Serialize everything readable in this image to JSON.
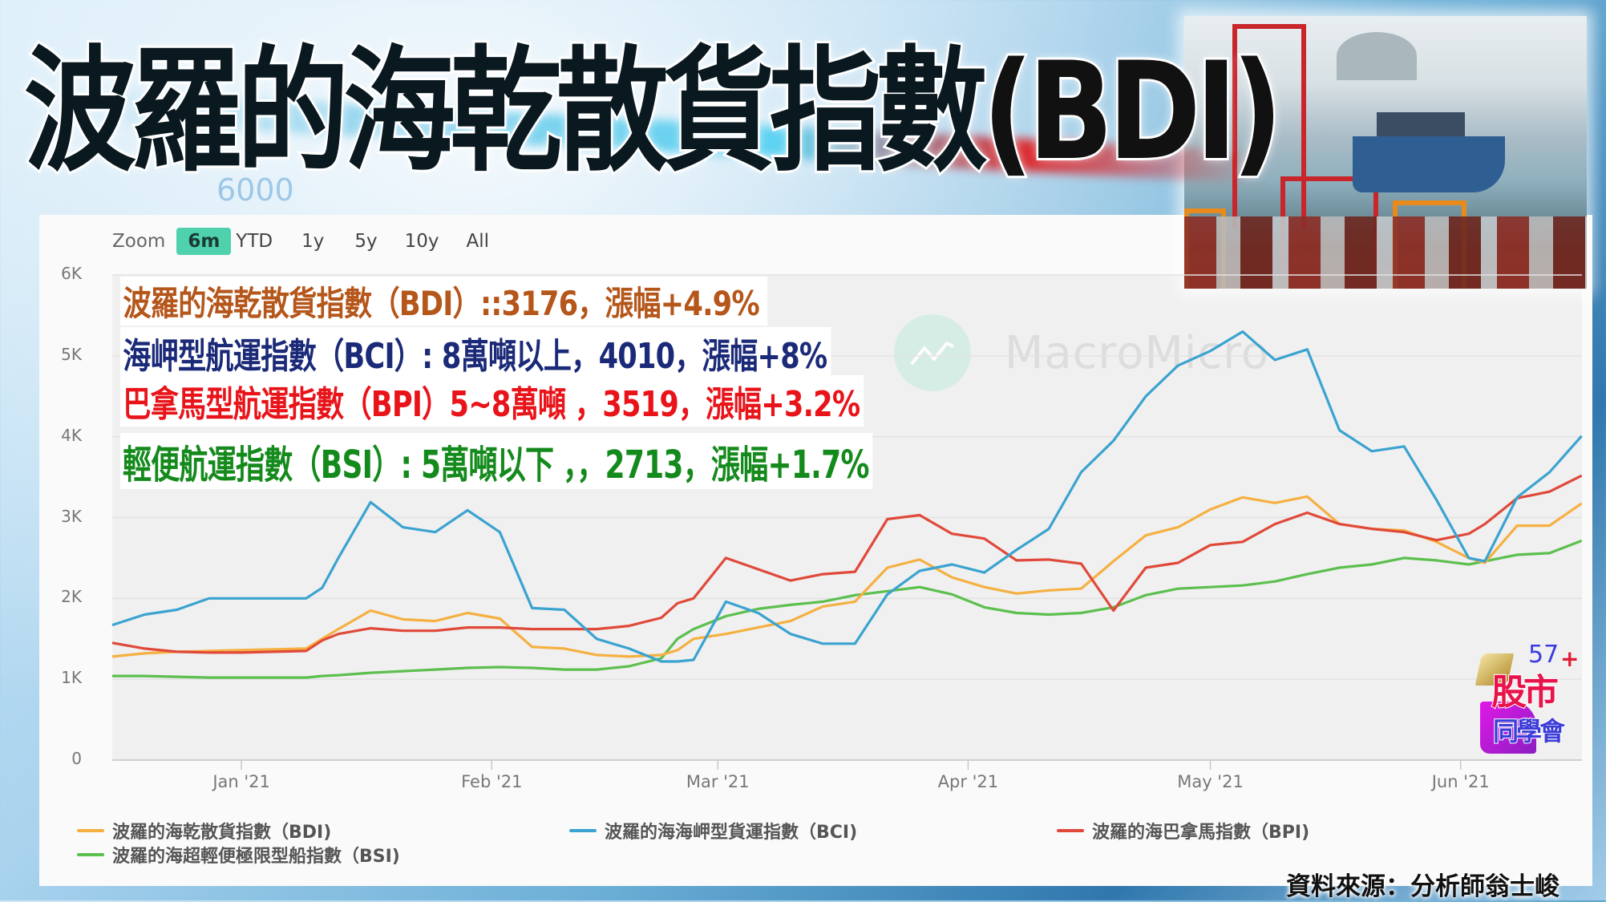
{
  "banner": {
    "title_cn": "波羅的海乾散貨指數",
    "title_paren_open": "(",
    "title_abbr": "BDI",
    "title_paren_close": ")",
    "background_ghost_number": "6000"
  },
  "chart_toolbar": {
    "zoom_label": "Zoom",
    "buttons": [
      {
        "label": "6m",
        "active": true
      },
      {
        "label": "YTD",
        "active": false
      },
      {
        "label": "1y",
        "active": false
      },
      {
        "label": "5y",
        "active": false
      },
      {
        "label": "10y",
        "active": false
      },
      {
        "label": "All",
        "active": false
      }
    ]
  },
  "watermark": {
    "text": "MacroMicro",
    "icon": "chart-line-icon"
  },
  "annotations": [
    {
      "text": "波羅的海乾散貨指數（BDI）::3176，漲幅+4.9%",
      "color": "#b5561a"
    },
    {
      "text": "海岬型航運指數（BCI）: 8萬噸以上，4010，漲幅+8%",
      "color": "#1b2a78"
    },
    {
      "text": "巴拿馬型航運指數（BPI）5~8萬噸 ，3519，漲幅+3.2%",
      "color": "#e8141a"
    },
    {
      "text": "輕便航運指數（BSI）: 5萬噸以下 ，，2713，漲幅+1.7%",
      "color": "#148a1c"
    }
  ],
  "legend": [
    {
      "label": "波羅的海乾散貨指數（BDI)",
      "color": "#f5b041"
    },
    {
      "label": "波羅的海海岬型貨運指數（BCI)",
      "color": "#3aa3d0"
    },
    {
      "label": "波羅的海巴拿馬指數（BPI)",
      "color": "#e0493a"
    },
    {
      "label": "波羅的海超輕便極限型船指數（BSI)",
      "color": "#5cbf4e"
    }
  ],
  "source": "資料來源：分析師翁士峻",
  "logo": {
    "number": "57",
    "plus": "+",
    "line1": "股市",
    "line2": "同學會"
  },
  "chart_data": {
    "type": "line",
    "title": "波羅的海乾散貨指數(BDI)",
    "xlabel": "",
    "ylabel": "",
    "ylim": [
      0,
      6000
    ],
    "yticks": [
      "0",
      "1K",
      "2K",
      "3K",
      "4K",
      "5K",
      "6K"
    ],
    "ytick_values": [
      0,
      1000,
      2000,
      3000,
      4000,
      5000,
      6000
    ],
    "xticks": [
      "Jan '21",
      "Feb '21",
      "Mar '21",
      "Apr '21",
      "May '21",
      "Jun '21"
    ],
    "xtick_days": [
      16,
      47,
      75,
      106,
      136,
      167
    ],
    "x_start": "2020-12-16",
    "x_end": "2021-06-16",
    "grid": true,
    "legend_position": "bottom",
    "x_days": [
      0,
      4,
      8,
      12,
      16,
      20,
      24,
      26,
      28,
      32,
      36,
      40,
      44,
      48,
      52,
      56,
      60,
      64,
      68,
      70,
      72,
      76,
      80,
      84,
      88,
      92,
      96,
      100,
      104,
      108,
      112,
      116,
      120,
      124,
      128,
      132,
      136,
      140,
      144,
      148,
      152,
      156,
      160,
      164,
      168,
      170,
      174,
      178,
      182
    ],
    "series": [
      {
        "name": "波羅的海乾散貨指數（BDI)",
        "color": "#f5b041",
        "values": [
          1280,
          1320,
          1340,
          1350,
          1360,
          1370,
          1380,
          1500,
          1620,
          1850,
          1740,
          1720,
          1820,
          1750,
          1400,
          1380,
          1300,
          1280,
          1300,
          1360,
          1500,
          1560,
          1640,
          1720,
          1900,
          1960,
          2380,
          2480,
          2260,
          2140,
          2060,
          2100,
          2120,
          2460,
          2780,
          2880,
          3100,
          3250,
          3180,
          3260,
          2920,
          2860,
          2840,
          2700,
          2500,
          2440,
          2900,
          2900,
          3176
        ]
      },
      {
        "name": "波羅的海海岬型貨運指數（BCI)",
        "color": "#3aa3d0",
        "values": [
          1670,
          1800,
          1860,
          2000,
          2000,
          2000,
          2000,
          2130,
          2500,
          3190,
          2880,
          2820,
          3090,
          2820,
          1880,
          1860,
          1500,
          1380,
          1220,
          1220,
          1240,
          1960,
          1820,
          1560,
          1440,
          1440,
          2050,
          2340,
          2420,
          2320,
          2600,
          2860,
          3560,
          3950,
          4500,
          4880,
          5060,
          5300,
          4950,
          5080,
          4080,
          3820,
          3880,
          3220,
          2500,
          2460,
          3250,
          3560,
          4010
        ]
      },
      {
        "name": "波羅的海巴拿馬指數（BPI)",
        "color": "#e0493a",
        "values": [
          1450,
          1380,
          1340,
          1330,
          1330,
          1340,
          1350,
          1480,
          1560,
          1630,
          1600,
          1600,
          1640,
          1640,
          1620,
          1620,
          1620,
          1660,
          1760,
          1940,
          2000,
          2500,
          2360,
          2220,
          2300,
          2330,
          2980,
          3030,
          2800,
          2740,
          2470,
          2480,
          2430,
          1850,
          2380,
          2440,
          2660,
          2700,
          2920,
          3060,
          2920,
          2860,
          2820,
          2720,
          2800,
          2920,
          3240,
          3320,
          3519
        ]
      },
      {
        "name": "波羅的海超輕便極限型船指數（BSI)",
        "color": "#5cbf4e",
        "values": [
          1040,
          1040,
          1030,
          1020,
          1020,
          1020,
          1020,
          1040,
          1050,
          1080,
          1100,
          1120,
          1140,
          1150,
          1140,
          1120,
          1120,
          1160,
          1260,
          1500,
          1620,
          1780,
          1870,
          1920,
          1960,
          2040,
          2090,
          2140,
          2050,
          1890,
          1820,
          1800,
          1820,
          1890,
          2040,
          2120,
          2140,
          2160,
          2210,
          2300,
          2380,
          2420,
          2500,
          2470,
          2420,
          2460,
          2540,
          2560,
          2713
        ]
      }
    ]
  }
}
